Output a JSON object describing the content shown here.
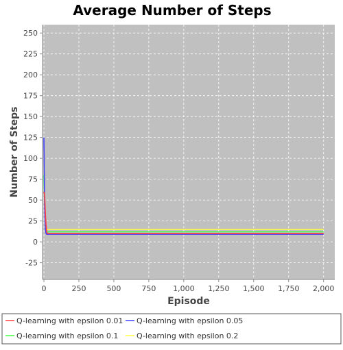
{
  "chart_data": {
    "type": "line",
    "title": "Average Number of Steps",
    "xlabel": "Episode",
    "ylabel": "Number of Steps",
    "xlim": [
      -10,
      2080
    ],
    "ylim": [
      -45,
      260
    ],
    "x_ticks": [
      0,
      250,
      500,
      750,
      1000,
      1250,
      1500,
      1750,
      2000
    ],
    "x_tick_labels": [
      "0",
      "250",
      "500",
      "750",
      "1,000",
      "1,250",
      "1,500",
      "1,750",
      "2,000"
    ],
    "y_ticks": [
      -25,
      0,
      25,
      50,
      75,
      100,
      125,
      150,
      175,
      200,
      225,
      250
    ],
    "y_tick_labels": [
      "-25",
      "0",
      "25",
      "50",
      "75",
      "100",
      "125",
      "150",
      "175",
      "200",
      "225",
      "250"
    ],
    "grid": true,
    "legend_position": "bottom",
    "background": "#c0c0c0",
    "series": [
      {
        "name": "Q-learning with epsilon 0.01",
        "color": "#ff4040",
        "x": [
          0,
          5,
          10,
          15,
          20,
          25,
          30,
          40,
          50,
          75,
          100,
          150,
          200,
          250,
          300,
          400,
          500,
          600,
          700,
          800,
          900,
          1000,
          1100,
          1200,
          1300,
          1400,
          1500,
          1600,
          1700,
          1800,
          1900,
          2000
        ],
        "values": [
          60,
          55,
          35,
          20,
          12,
          10,
          10,
          10,
          10,
          10,
          10,
          10,
          10,
          10,
          10,
          10,
          10,
          10,
          10,
          10,
          10,
          10,
          10,
          10,
          10,
          10,
          10,
          10,
          10,
          10,
          10,
          10
        ]
      },
      {
        "name": "Q-learning with epsilon 0.05",
        "color": "#4040ff",
        "x": [
          0,
          5,
          10,
          15,
          20,
          25,
          30,
          40,
          50,
          75,
          100,
          150,
          200,
          250,
          300,
          400,
          500,
          600,
          700,
          800,
          900,
          1000,
          1100,
          1200,
          1300,
          1400,
          1500,
          1600,
          1700,
          1800,
          1900,
          2000
        ],
        "values": [
          125,
          40,
          15,
          10,
          9,
          9,
          9,
          9,
          9,
          9,
          9,
          9,
          9,
          9,
          9,
          9,
          9,
          9,
          9,
          9,
          9,
          9,
          9,
          9,
          9,
          9,
          9,
          9,
          9,
          9,
          9,
          9
        ]
      },
      {
        "name": "Q-learning with epsilon 0.1",
        "color": "#40ff40",
        "x": [
          0,
          5,
          10,
          15,
          20,
          25,
          30,
          40,
          50,
          75,
          100,
          150,
          200,
          250,
          300,
          400,
          500,
          600,
          700,
          800,
          900,
          1000,
          1100,
          1200,
          1300,
          1400,
          1500,
          1600,
          1700,
          1800,
          1900,
          2000
        ],
        "values": [
          80,
          45,
          25,
          14,
          12,
          12,
          12,
          12,
          12,
          12,
          12,
          12,
          12,
          12,
          12,
          12,
          12,
          12,
          12,
          12,
          12,
          12,
          12,
          12,
          12,
          12,
          12,
          12,
          12,
          12,
          12,
          12
        ]
      },
      {
        "name": "Q-learning with epsilon 0.2",
        "color": "#ffff40",
        "x": [
          0,
          5,
          10,
          15,
          20,
          25,
          30,
          40,
          50,
          75,
          100,
          150,
          200,
          250,
          300,
          400,
          500,
          600,
          700,
          800,
          900,
          1000,
          1100,
          1200,
          1300,
          1400,
          1500,
          1600,
          1700,
          1800,
          1900,
          2000
        ],
        "values": [
          110,
          50,
          25,
          16,
          15,
          15,
          15,
          15,
          15,
          15,
          15,
          15,
          15,
          15,
          15,
          15,
          15,
          15,
          15,
          15,
          15,
          15,
          15,
          15,
          15,
          15,
          15,
          15,
          15,
          15,
          15,
          15
        ]
      }
    ]
  }
}
